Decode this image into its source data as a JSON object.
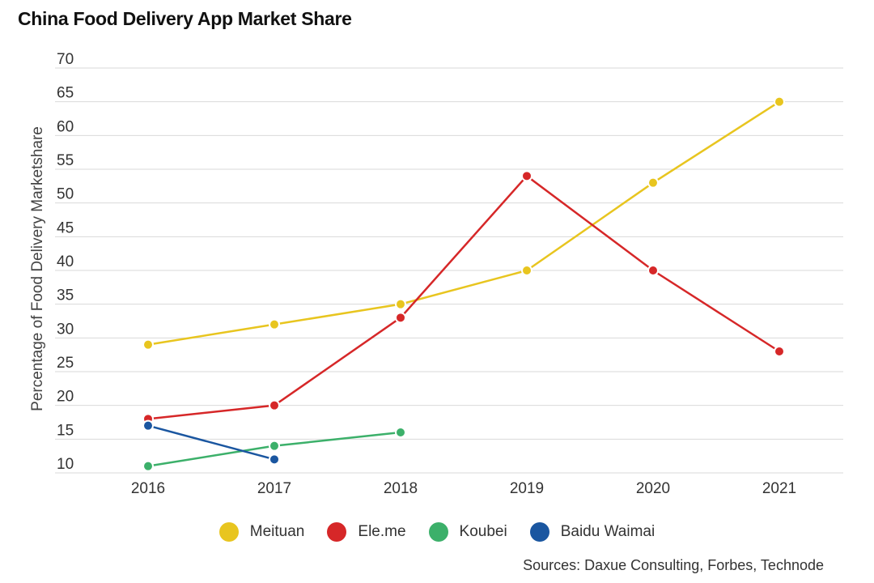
{
  "chart_data": {
    "type": "line",
    "title": "China Food Delivery App Market Share",
    "xlabel": "",
    "ylabel": "Percentage of Food Delivery Marketshare",
    "x": [
      "2016",
      "2017",
      "2018",
      "2019",
      "2020",
      "2021"
    ],
    "ylim": [
      10,
      70
    ],
    "yticks": [
      10,
      15,
      20,
      25,
      30,
      35,
      40,
      45,
      50,
      55,
      60,
      65,
      70
    ],
    "grid": true,
    "legend_position": "bottom",
    "series": [
      {
        "name": "Meituan",
        "color": "#e8c51f",
        "values": [
          29,
          32,
          35,
          40,
          53,
          65
        ]
      },
      {
        "name": "Ele.me",
        "color": "#d62728",
        "values": [
          18,
          20,
          33,
          54,
          40,
          28
        ]
      },
      {
        "name": "Koubei",
        "color": "#3cb06a",
        "values": [
          11,
          14,
          16,
          null,
          null,
          null
        ]
      },
      {
        "name": "Baidu Waimai",
        "color": "#1a56a0",
        "values": [
          17,
          12,
          null,
          null,
          null,
          null
        ]
      }
    ],
    "source": "Sources: Daxue Consulting, Forbes, Technode"
  }
}
